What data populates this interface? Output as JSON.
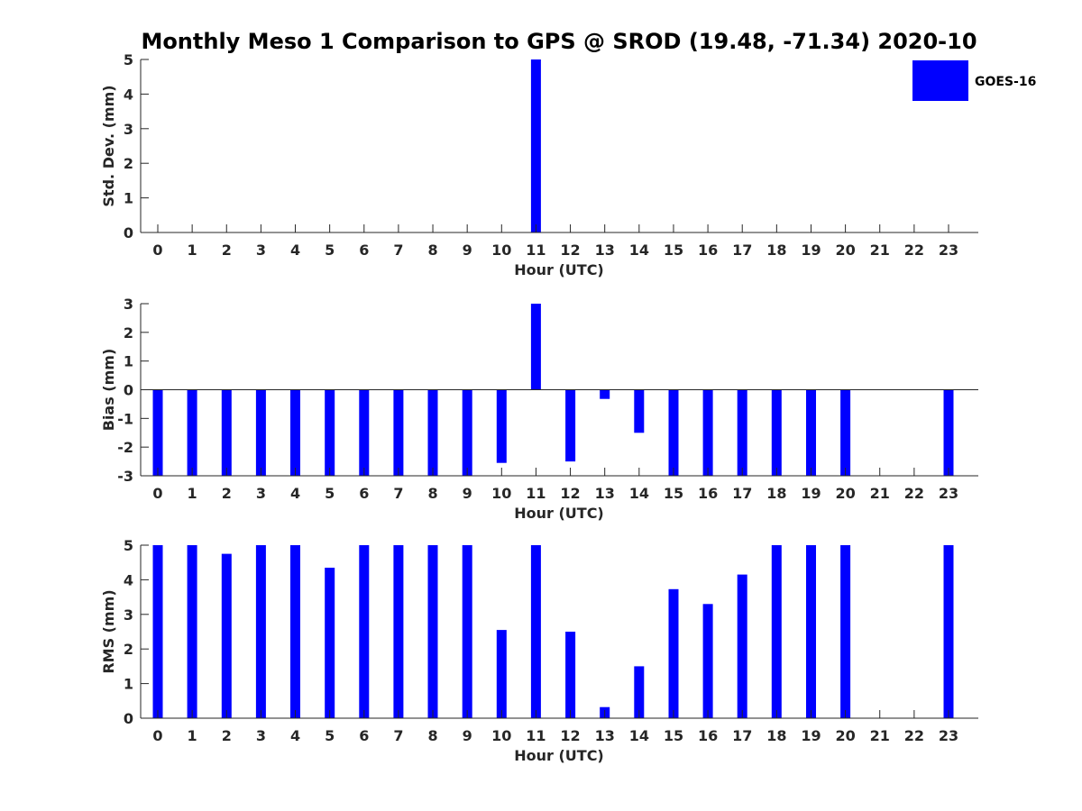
{
  "chart_data": {
    "title": "Monthly Meso 1 Comparison to GPS @ SROD (19.48, -71.34) 2020-10",
    "legend": {
      "label": "GOES-16",
      "color": "#0000ff",
      "placement": "top-right"
    },
    "bar_color": "#0000ff",
    "panels": [
      {
        "type": "bar",
        "ylabel": "Std. Dev. (mm)",
        "xlabel": "Hour (UTC)",
        "ylim": [
          0,
          5
        ],
        "yticks": [
          "0",
          "1",
          "2",
          "3",
          "4",
          "5"
        ],
        "categories": [
          "0",
          "1",
          "2",
          "3",
          "4",
          "5",
          "6",
          "7",
          "8",
          "9",
          "10",
          "11",
          "12",
          "13",
          "14",
          "15",
          "16",
          "17",
          "18",
          "19",
          "20",
          "21",
          "22",
          "23"
        ],
        "values": [
          null,
          null,
          null,
          null,
          null,
          null,
          null,
          null,
          null,
          null,
          null,
          5,
          null,
          null,
          null,
          null,
          null,
          null,
          null,
          null,
          null,
          null,
          null,
          null
        ]
      },
      {
        "type": "bar",
        "ylabel": "Bias (mm)",
        "xlabel": "Hour (UTC)",
        "ylim": [
          -3,
          3
        ],
        "yticks": [
          "-3",
          "-2",
          "-1",
          "0",
          "1",
          "2",
          "3"
        ],
        "categories": [
          "0",
          "1",
          "2",
          "3",
          "4",
          "5",
          "6",
          "7",
          "8",
          "9",
          "10",
          "11",
          "12",
          "13",
          "14",
          "15",
          "16",
          "17",
          "18",
          "19",
          "20",
          "21",
          "22",
          "23"
        ],
        "values": [
          -3,
          -3,
          -3,
          -3,
          -3,
          -3,
          -3,
          -3,
          -3,
          -3,
          -2.55,
          3,
          -2.5,
          -0.32,
          -1.5,
          -3,
          -3,
          -3,
          -3,
          -3,
          -3,
          null,
          null,
          -3
        ]
      },
      {
        "type": "bar",
        "ylabel": "RMS (mm)",
        "xlabel": "Hour (UTC)",
        "ylim": [
          0,
          5
        ],
        "yticks": [
          "0",
          "1",
          "2",
          "3",
          "4",
          "5"
        ],
        "categories": [
          "0",
          "1",
          "2",
          "3",
          "4",
          "5",
          "6",
          "7",
          "8",
          "9",
          "10",
          "11",
          "12",
          "13",
          "14",
          "15",
          "16",
          "17",
          "18",
          "19",
          "20",
          "21",
          "22",
          "23"
        ],
        "values": [
          5,
          5,
          4.75,
          5,
          5,
          4.35,
          5,
          5,
          5,
          5,
          2.55,
          5,
          2.5,
          0.32,
          1.5,
          3.73,
          3.3,
          4.15,
          5,
          5,
          5,
          null,
          null,
          5
        ]
      }
    ]
  }
}
